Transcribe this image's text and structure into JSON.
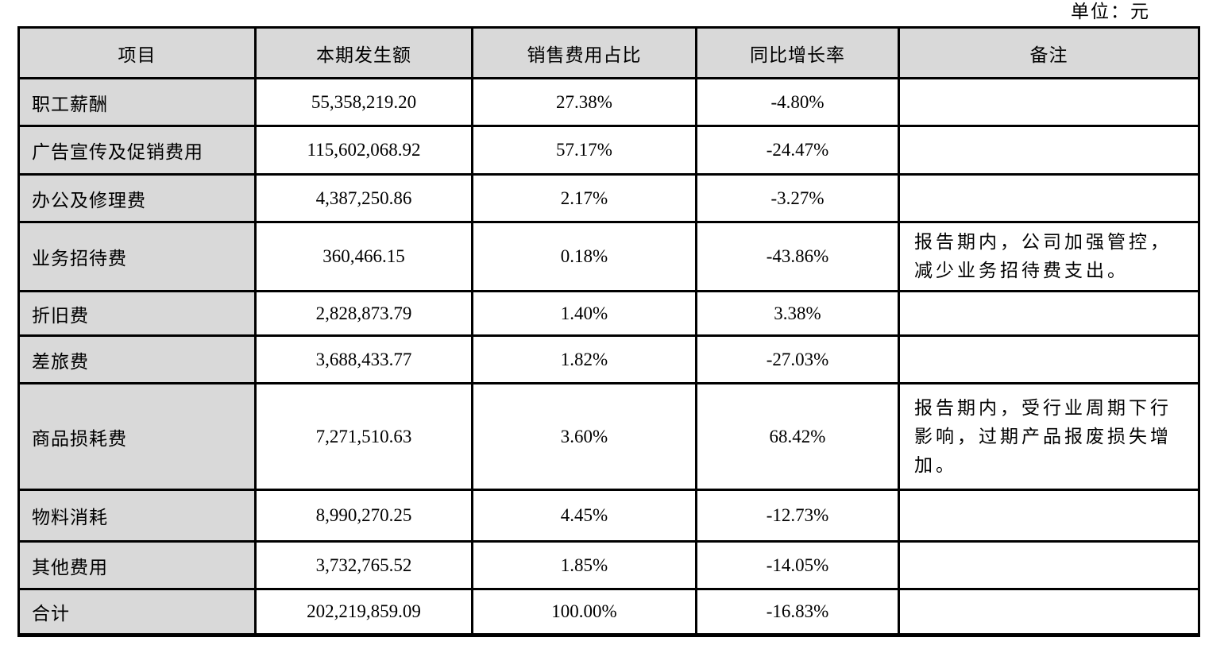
{
  "page": {
    "unit_label": "单位：元"
  },
  "table": {
    "headers": [
      "项目",
      "本期发生额",
      "销售费用占比",
      "同比增长率",
      "备注"
    ],
    "rows": [
      {
        "item": "职工薪酬",
        "amount": "55,358,219.20",
        "ratio": "27.38%",
        "yoy": "-4.80%",
        "note": ""
      },
      {
        "item": "广告宣传及促销费用",
        "amount": "115,602,068.92",
        "ratio": "57.17%",
        "yoy": "-24.47%",
        "note": ""
      },
      {
        "item": "办公及修理费",
        "amount": "4,387,250.86",
        "ratio": "2.17%",
        "yoy": "-3.27%",
        "note": ""
      },
      {
        "item": "业务招待费",
        "amount": "360,466.15",
        "ratio": "0.18%",
        "yoy": "-43.86%",
        "note": "报告期内，公司加强管控，减少业务招待费支出。"
      },
      {
        "item": "折旧费",
        "amount": "2,828,873.79",
        "ratio": "1.40%",
        "yoy": "3.38%",
        "note": ""
      },
      {
        "item": "差旅费",
        "amount": "3,688,433.77",
        "ratio": "1.82%",
        "yoy": "-27.03%",
        "note": ""
      },
      {
        "item": "商品损耗费",
        "amount": "7,271,510.63",
        "ratio": "3.60%",
        "yoy": "68.42%",
        "note": "报告期内，受行业周期下行影响，过期产品报废损失增加。"
      },
      {
        "item": "物料消耗",
        "amount": "8,990,270.25",
        "ratio": "4.45%",
        "yoy": "-12.73%",
        "note": ""
      },
      {
        "item": "其他费用",
        "amount": "3,732,765.52",
        "ratio": "1.85%",
        "yoy": "-14.05%",
        "note": ""
      },
      {
        "item": "合计",
        "amount": "202,219,859.09",
        "ratio": "100.00%",
        "yoy": "-16.83%",
        "note": ""
      }
    ],
    "colors": {
      "header_bg": "#d9d9d9",
      "item_col_bg": "#d9d9d9",
      "border": "#000000",
      "text": "#000000",
      "background": "#ffffff"
    }
  }
}
